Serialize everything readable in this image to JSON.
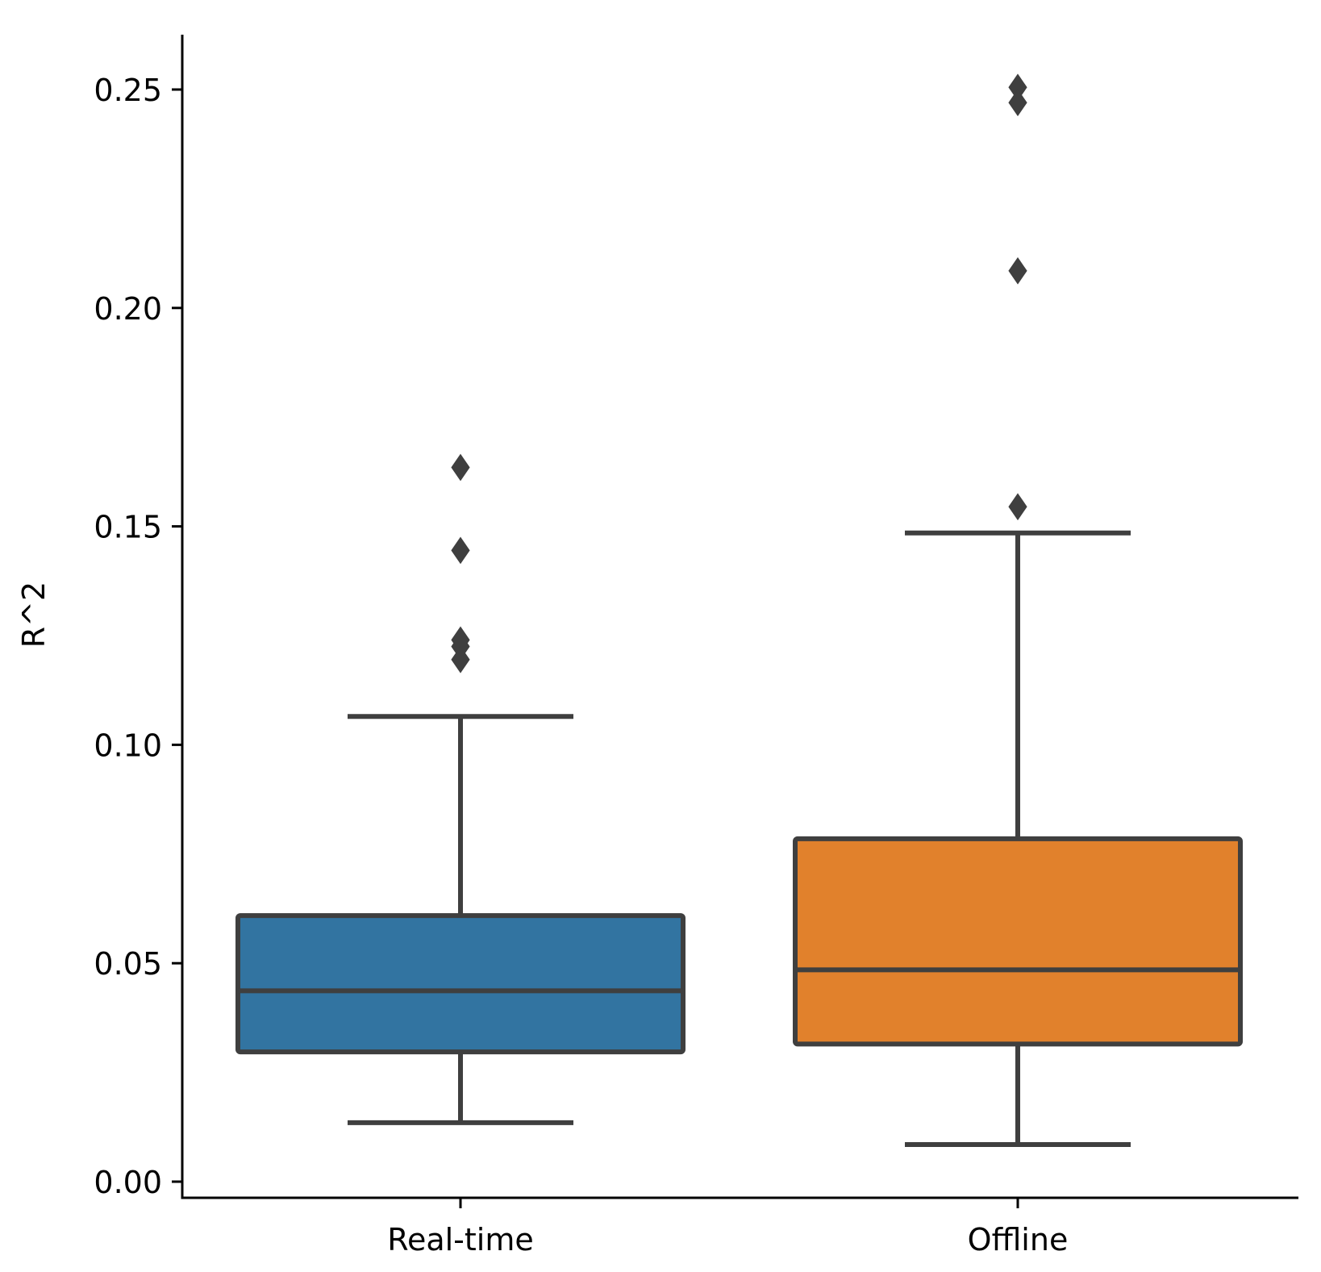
{
  "chart_data": {
    "type": "boxplot",
    "title": "",
    "xlabel": "",
    "ylabel": "R^2",
    "ylim": [
      -0.004,
      0.263
    ],
    "y_ticks": [
      0.0,
      0.05,
      0.1,
      0.15,
      0.2,
      0.25
    ],
    "y_tick_labels": [
      "0.00",
      "0.05",
      "0.10",
      "0.15",
      "0.20",
      "0.25"
    ],
    "grid": false,
    "categories": [
      "Real-time",
      "Offline"
    ],
    "boxes": [
      {
        "name": "Real-time",
        "color": "#3274a1",
        "whisker_low": 0.0135,
        "q1": 0.0297,
        "median": 0.0437,
        "q3": 0.0609,
        "whisker_high": 0.1065,
        "outliers": [
          0.1635,
          0.1445,
          0.124,
          0.1225,
          0.1195
        ]
      },
      {
        "name": "Offline",
        "color": "#e1812c",
        "whisker_low": 0.0085,
        "q1": 0.0315,
        "median": 0.0485,
        "q3": 0.0785,
        "whisker_high": 0.1485,
        "outliers": [
          0.2505,
          0.247,
          0.2085,
          0.1545
        ]
      }
    ],
    "line_color": "#3f3f3f",
    "axis_color": "#000000"
  }
}
